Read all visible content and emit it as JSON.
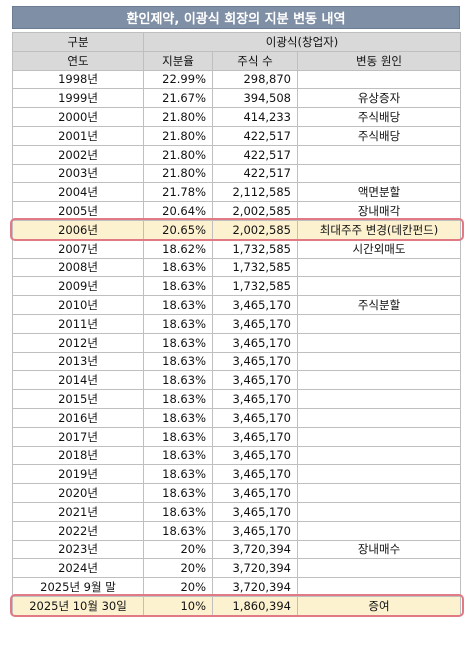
{
  "title": "환인제약, 이광식 회장의 지분 변동 내역",
  "header": {
    "group_label": "구분",
    "person_label": "이광식(창업자)",
    "col_year": "연도",
    "col_ratio": "지분율",
    "col_shares": "주식 수",
    "col_reason": "변동 원인"
  },
  "rows": [
    {
      "year": "1998년",
      "ratio": "22.99%",
      "shares": "298,870",
      "reason": "",
      "highlight": false
    },
    {
      "year": "1999년",
      "ratio": "21.67%",
      "shares": "394,508",
      "reason": "유상증자",
      "highlight": false
    },
    {
      "year": "2000년",
      "ratio": "21.80%",
      "shares": "414,233",
      "reason": "주식배당",
      "highlight": false
    },
    {
      "year": "2001년",
      "ratio": "21.80%",
      "shares": "422,517",
      "reason": "주식배당",
      "highlight": false
    },
    {
      "year": "2002년",
      "ratio": "21.80%",
      "shares": "422,517",
      "reason": "",
      "highlight": false
    },
    {
      "year": "2003년",
      "ratio": "21.80%",
      "shares": "422,517",
      "reason": "",
      "highlight": false
    },
    {
      "year": "2004년",
      "ratio": "21.78%",
      "shares": "2,112,585",
      "reason": "액면분할",
      "highlight": false
    },
    {
      "year": "2005년",
      "ratio": "20.64%",
      "shares": "2,002,585",
      "reason": "장내매각",
      "highlight": false
    },
    {
      "year": "2006년",
      "ratio": "20.65%",
      "shares": "2,002,585",
      "reason": "최대주주 변경(데칸펀드)",
      "highlight": true
    },
    {
      "year": "2007년",
      "ratio": "18.62%",
      "shares": "1,732,585",
      "reason": "시간외매도",
      "highlight": false
    },
    {
      "year": "2008년",
      "ratio": "18.63%",
      "shares": "1,732,585",
      "reason": "",
      "highlight": false
    },
    {
      "year": "2009년",
      "ratio": "18.63%",
      "shares": "1,732,585",
      "reason": "",
      "highlight": false
    },
    {
      "year": "2010년",
      "ratio": "18.63%",
      "shares": "3,465,170",
      "reason": "주식분할",
      "highlight": false
    },
    {
      "year": "2011년",
      "ratio": "18.63%",
      "shares": "3,465,170",
      "reason": "",
      "highlight": false
    },
    {
      "year": "2012년",
      "ratio": "18.63%",
      "shares": "3,465,170",
      "reason": "",
      "highlight": false
    },
    {
      "year": "2013년",
      "ratio": "18.63%",
      "shares": "3,465,170",
      "reason": "",
      "highlight": false
    },
    {
      "year": "2014년",
      "ratio": "18.63%",
      "shares": "3,465,170",
      "reason": "",
      "highlight": false
    },
    {
      "year": "2015년",
      "ratio": "18.63%",
      "shares": "3,465,170",
      "reason": "",
      "highlight": false
    },
    {
      "year": "2016년",
      "ratio": "18.63%",
      "shares": "3,465,170",
      "reason": "",
      "highlight": false
    },
    {
      "year": "2017년",
      "ratio": "18.63%",
      "shares": "3,465,170",
      "reason": "",
      "highlight": false
    },
    {
      "year": "2018년",
      "ratio": "18.63%",
      "shares": "3,465,170",
      "reason": "",
      "highlight": false
    },
    {
      "year": "2019년",
      "ratio": "18.63%",
      "shares": "3,465,170",
      "reason": "",
      "highlight": false
    },
    {
      "year": "2020년",
      "ratio": "18.63%",
      "shares": "3,465,170",
      "reason": "",
      "highlight": false
    },
    {
      "year": "2021년",
      "ratio": "18.63%",
      "shares": "3,465,170",
      "reason": "",
      "highlight": false
    },
    {
      "year": "2022년",
      "ratio": "18.63%",
      "shares": "3,465,170",
      "reason": "",
      "highlight": false
    },
    {
      "year": "2023년",
      "ratio": "20%",
      "shares": "3,720,394",
      "reason": "장내매수",
      "highlight": false
    },
    {
      "year": "2024년",
      "ratio": "20%",
      "shares": "3,720,394",
      "reason": "",
      "highlight": false
    },
    {
      "year": "2025년 9월 말",
      "ratio": "20%",
      "shares": "3,720,394",
      "reason": "",
      "highlight": false
    },
    {
      "year": "2025년 10월 30일",
      "ratio": "10%",
      "shares": "1,860,394",
      "reason": "증여",
      "highlight": true
    }
  ]
}
